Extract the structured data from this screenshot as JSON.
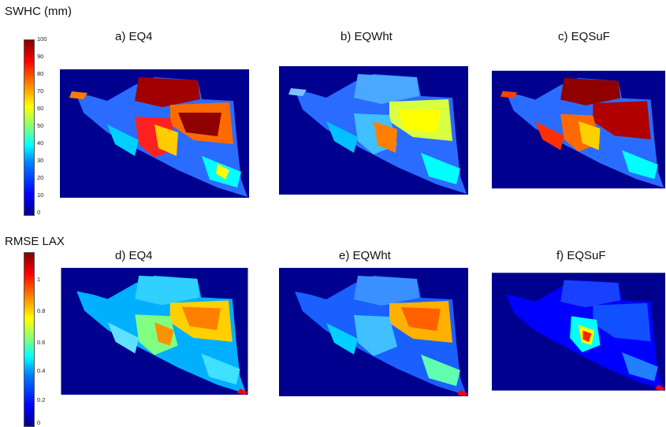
{
  "sections": [
    {
      "label": "SWHC (mm)",
      "colorbar": {
        "min": 0,
        "max": 100,
        "ticks": [
          "100",
          "90",
          "80",
          "70",
          "60",
          "50",
          "40",
          "30",
          "20",
          "10",
          "0"
        ]
      },
      "panels": [
        {
          "title": "a) EQ4"
        },
        {
          "title": "b) EQWht"
        },
        {
          "title": "c) EQSuF"
        }
      ]
    },
    {
      "label": "RMSE LAX",
      "colorbar": {
        "min": 0,
        "max": 1.2,
        "ticks": [
          "1",
          "0.8",
          "0.6",
          "0.4",
          "0.2",
          "0"
        ]
      },
      "panels": [
        {
          "title": "d) EQ4"
        },
        {
          "title": "e) EQWht"
        },
        {
          "title": "f) EQSuF"
        }
      ]
    }
  ],
  "colors": {
    "background_map": "#00008f",
    "jet_low": "#00008f",
    "jet_high": "#800000"
  }
}
